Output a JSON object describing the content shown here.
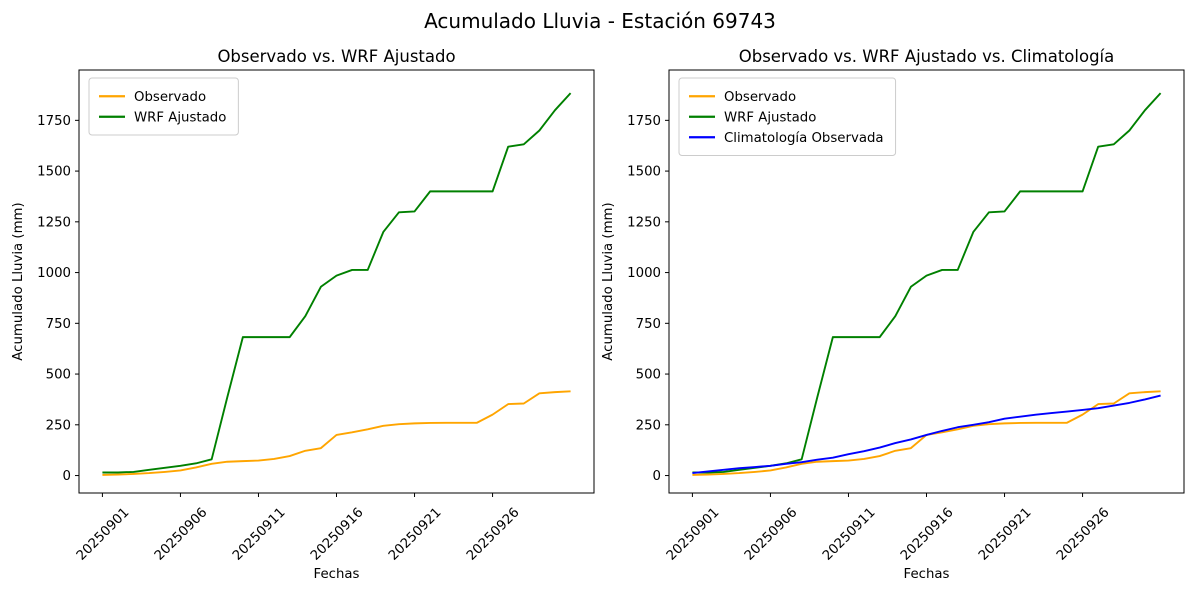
{
  "figure": {
    "suptitle": "Acumulado Lluvia - Estación 69743",
    "background": "#ffffff"
  },
  "chart_data": [
    {
      "type": "line",
      "title": "Observado vs. WRF Ajustado",
      "xlabel": "Fechas",
      "ylabel": "Acumulado Lluvia (mm)",
      "x": [
        "20250901",
        "20250902",
        "20250903",
        "20250904",
        "20250905",
        "20250906",
        "20250907",
        "20250908",
        "20250909",
        "20250910",
        "20250911",
        "20250912",
        "20250913",
        "20250914",
        "20250915",
        "20250916",
        "20250917",
        "20250918",
        "20250919",
        "20250920",
        "20250921",
        "20250922",
        "20250923",
        "20250924",
        "20250925",
        "20250926",
        "20250927",
        "20250928",
        "20250929",
        "20250930",
        "20251001"
      ],
      "xtick_positions": [
        0,
        5,
        10,
        15,
        20,
        25
      ],
      "xtick_labels": [
        "20250901",
        "20250906",
        "20250911",
        "20250916",
        "20250921",
        "20250926"
      ],
      "yticks": [
        0,
        250,
        500,
        750,
        1000,
        1250,
        1500,
        1750
      ],
      "ylim": [
        -86,
        1998
      ],
      "grid": false,
      "legend": {
        "position": "upper left",
        "frame": true
      },
      "series": [
        {
          "name": "Observado",
          "color": "#FFA500",
          "values": [
            3,
            5,
            8,
            12,
            18,
            25,
            40,
            58,
            68,
            71,
            74,
            82,
            96,
            122,
            135,
            200,
            213,
            228,
            245,
            253,
            257,
            259,
            260,
            260,
            260,
            300,
            352,
            355,
            405,
            411,
            415
          ]
        },
        {
          "name": "WRF Ajustado",
          "color": "#008000",
          "values": [
            15,
            15,
            18,
            28,
            38,
            48,
            60,
            80,
            385,
            682,
            682,
            682,
            682,
            785,
            930,
            985,
            1013,
            1013,
            1200,
            1297,
            1301,
            1400,
            1400,
            1400,
            1400,
            1400,
            1620,
            1632,
            1700,
            1800,
            1884
          ]
        }
      ]
    },
    {
      "type": "line",
      "title": "Observado vs. WRF Ajustado vs. Climatología",
      "xlabel": "Fechas",
      "ylabel": "Acumulado Lluvia (mm)",
      "x": [
        "20250901",
        "20250902",
        "20250903",
        "20250904",
        "20250905",
        "20250906",
        "20250907",
        "20250908",
        "20250909",
        "20250910",
        "20250911",
        "20250912",
        "20250913",
        "20250914",
        "20250915",
        "20250916",
        "20250917",
        "20250918",
        "20250919",
        "20250920",
        "20250921",
        "20250922",
        "20250923",
        "20250924",
        "20250925",
        "20250926",
        "20250927",
        "20250928",
        "20250929",
        "20250930",
        "20251001"
      ],
      "xtick_positions": [
        0,
        5,
        10,
        15,
        20,
        25
      ],
      "xtick_labels": [
        "20250901",
        "20250906",
        "20250911",
        "20250916",
        "20250921",
        "20250926"
      ],
      "yticks": [
        0,
        250,
        500,
        750,
        1000,
        1250,
        1500,
        1750
      ],
      "ylim": [
        -86,
        1998
      ],
      "grid": false,
      "legend": {
        "position": "upper left",
        "frame": true
      },
      "series": [
        {
          "name": "Observado",
          "color": "#FFA500",
          "values": [
            3,
            5,
            8,
            12,
            18,
            25,
            40,
            58,
            68,
            71,
            74,
            82,
            96,
            122,
            135,
            200,
            213,
            228,
            245,
            253,
            257,
            259,
            260,
            260,
            260,
            300,
            352,
            355,
            405,
            411,
            415
          ]
        },
        {
          "name": "WRF Ajustado",
          "color": "#008000",
          "values": [
            15,
            15,
            18,
            28,
            38,
            48,
            60,
            80,
            385,
            682,
            682,
            682,
            682,
            785,
            930,
            985,
            1013,
            1013,
            1200,
            1297,
            1301,
            1400,
            1400,
            1400,
            1400,
            1400,
            1620,
            1632,
            1700,
            1800,
            1884
          ]
        },
        {
          "name": "Climatología Observada",
          "color": "#0000FF",
          "values": [
            12,
            20,
            28,
            36,
            42,
            48,
            58,
            66,
            78,
            88,
            105,
            120,
            138,
            160,
            178,
            200,
            220,
            238,
            250,
            263,
            280,
            290,
            300,
            308,
            315,
            323,
            332,
            345,
            358,
            375,
            394
          ]
        }
      ]
    }
  ],
  "style": {
    "axis_color": "#000000",
    "legend_edge_color": "#cccccc",
    "legend_face_color": "#ffffff"
  }
}
